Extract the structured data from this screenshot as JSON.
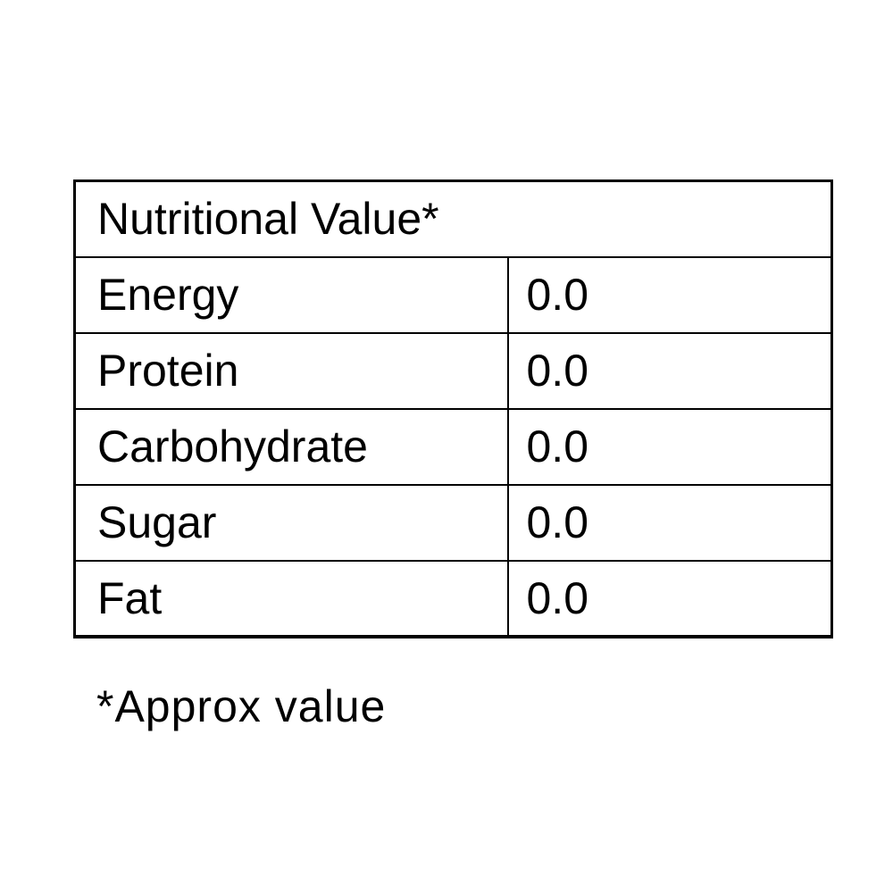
{
  "table": {
    "title": "Nutritional Value*",
    "rows": [
      [
        "Energy",
        "0.0"
      ],
      [
        "Protein",
        "0.0"
      ],
      [
        "Carbohydrate",
        "0.0"
      ],
      [
        "Sugar",
        "0.0"
      ],
      [
        "Fat",
        "0.0"
      ]
    ]
  },
  "footnote": "*Approx value"
}
